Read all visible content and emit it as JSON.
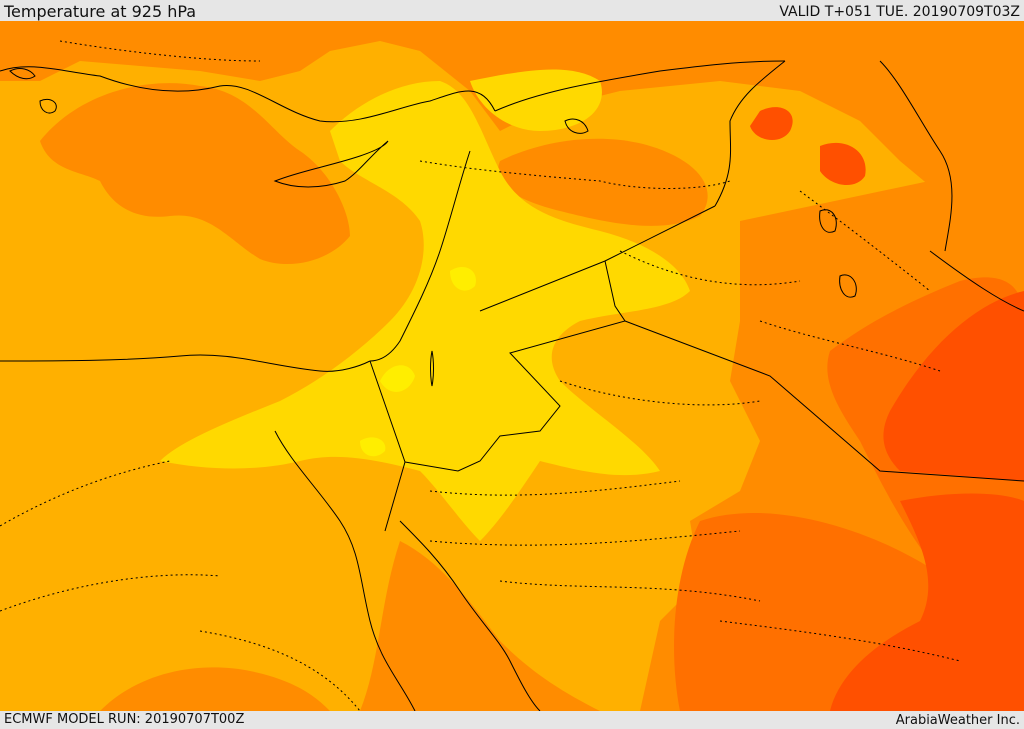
{
  "header": {
    "title": "Temperature at 925 hPa",
    "valid": "VALID T+051 TUE. 20190709T03Z"
  },
  "footer": {
    "model_run": "ECMWF MODEL RUN: 20190707T00Z",
    "credit": "ArabiaWeather Inc."
  },
  "map": {
    "colors": {
      "light_yellow": "#ffee00",
      "yellow": "#ffd900",
      "amber": "#ffb000",
      "orange": "#ff8c00",
      "dark_orange": "#ff7000",
      "red_orange": "#ff5000",
      "border": "#000000"
    }
  }
}
